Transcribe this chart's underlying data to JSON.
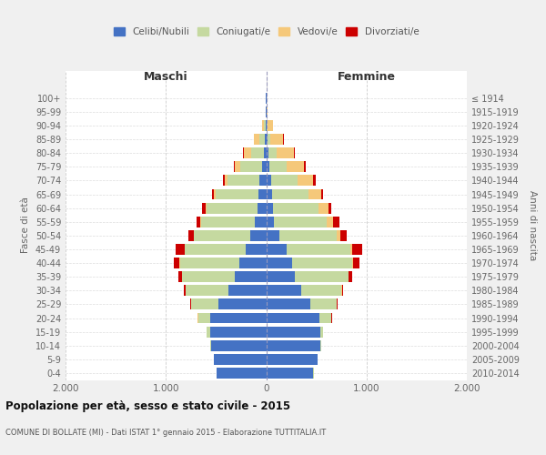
{
  "age_groups": [
    "0-4",
    "5-9",
    "10-14",
    "15-19",
    "20-24",
    "25-29",
    "30-34",
    "35-39",
    "40-44",
    "45-49",
    "50-54",
    "55-59",
    "60-64",
    "65-69",
    "70-74",
    "75-79",
    "80-84",
    "85-89",
    "90-94",
    "95-99",
    "100+"
  ],
  "birth_years": [
    "2010-2014",
    "2005-2009",
    "2000-2004",
    "1995-1999",
    "1990-1994",
    "1985-1989",
    "1980-1984",
    "1975-1979",
    "1970-1974",
    "1965-1969",
    "1960-1964",
    "1955-1959",
    "1950-1954",
    "1945-1949",
    "1940-1944",
    "1935-1939",
    "1930-1934",
    "1925-1929",
    "1920-1924",
    "1915-1919",
    "≤ 1914"
  ],
  "colors": {
    "celibe": "#4472c4",
    "coniugato": "#c5d9a0",
    "vedovo": "#f5c87a",
    "divorziato": "#cc0000"
  },
  "maschi": {
    "celibe": [
      490,
      520,
      550,
      560,
      560,
      480,
      380,
      310,
      270,
      200,
      160,
      110,
      90,
      80,
      65,
      40,
      20,
      10,
      5,
      2,
      2
    ],
    "coniugato": [
      2,
      5,
      5,
      30,
      120,
      270,
      420,
      530,
      590,
      610,
      560,
      540,
      500,
      420,
      320,
      220,
      130,
      60,
      15,
      3,
      0
    ],
    "vedovo": [
      0,
      0,
      0,
      0,
      1,
      2,
      2,
      2,
      3,
      5,
      5,
      10,
      15,
      20,
      30,
      50,
      70,
      50,
      20,
      2,
      0
    ],
    "divorziato": [
      0,
      0,
      0,
      0,
      2,
      5,
      15,
      30,
      60,
      90,
      50,
      30,
      30,
      20,
      15,
      10,
      8,
      5,
      2,
      0,
      0
    ]
  },
  "femmine": {
    "nubile": [
      470,
      510,
      540,
      540,
      530,
      440,
      350,
      290,
      260,
      200,
      130,
      80,
      70,
      60,
      50,
      30,
      20,
      10,
      5,
      2,
      2
    ],
    "coniugata": [
      2,
      5,
      5,
      30,
      120,
      260,
      400,
      530,
      600,
      640,
      570,
      520,
      450,
      360,
      260,
      170,
      80,
      30,
      10,
      2,
      0
    ],
    "vedova": [
      0,
      0,
      0,
      1,
      2,
      3,
      5,
      5,
      10,
      20,
      40,
      70,
      100,
      130,
      160,
      180,
      180,
      130,
      50,
      8,
      2
    ],
    "divorziata": [
      0,
      0,
      0,
      0,
      2,
      5,
      15,
      30,
      60,
      100,
      60,
      60,
      30,
      20,
      20,
      15,
      8,
      5,
      2,
      0,
      0
    ]
  },
  "title": "Popolazione per età, sesso e stato civile - 2015",
  "subtitle": "COMUNE DI BOLLATE (MI) - Dati ISTAT 1° gennaio 2015 - Elaborazione TUTTITALIA.IT",
  "xlabel_left": "Maschi",
  "xlabel_right": "Femmine",
  "ylabel_left": "Fasce di età",
  "ylabel_right": "Anni di nascita",
  "xlim": 2000,
  "xtick_labels": [
    "2.000",
    "1.000",
    "0",
    "1.000",
    "2.000"
  ],
  "legend_labels": [
    "Celibi/Nubili",
    "Coniugati/e",
    "Vedovi/e",
    "Divorziati/e"
  ],
  "bg_color": "#f0f0f0",
  "plot_bg": "#ffffff"
}
